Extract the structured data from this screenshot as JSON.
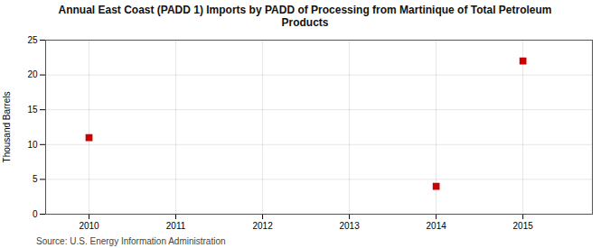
{
  "chart_data": {
    "type": "scatter",
    "title": "Annual East Coast (PADD 1) Imports by PADD of Processing from Martinique of Total Petroleum\nProducts",
    "ylabel": "Thousand Barrels",
    "source": "Source: U.S. Energy Information Administration",
    "x": [
      2010,
      2014,
      2015
    ],
    "values": [
      11,
      4,
      22
    ],
    "color": "#cc0000",
    "marker": "square",
    "xlim": [
      2009.5,
      2015.8
    ],
    "ylim": [
      0,
      25
    ],
    "xticks": [
      2010,
      2011,
      2012,
      2013,
      2014,
      2015
    ],
    "yticks": [
      0,
      5,
      10,
      15,
      20,
      25
    ],
    "grid": true
  }
}
